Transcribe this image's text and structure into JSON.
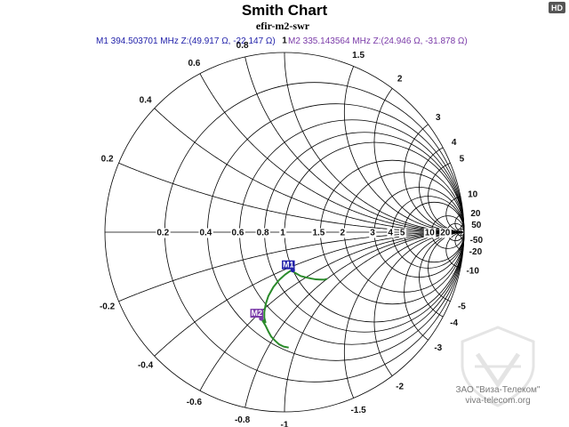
{
  "hd_badge": "HD",
  "watermark": {
    "company": "ЗАО \"Виза-Телеком\"",
    "url": "viva-telecom.org"
  },
  "colors": {
    "m1": "#2222aa",
    "m2": "#7a3aa8",
    "trace": "#2a8a2a",
    "grid": "#000000"
  },
  "chart_data": {
    "type": "smith",
    "title": "Smith Chart",
    "subtitle": "efir-m2-swr",
    "reference_impedance_ohm": 50,
    "markers": [
      {
        "name": "M1",
        "freq": "394.503701 MHz",
        "z": "Z:(49.917 Ω, -22.147 Ω)",
        "r": 49.917,
        "x": -22.147,
        "color_key": "m1",
        "label": "M1  394.503701 MHz  Z:(49.917 Ω, -22.147 Ω)"
      },
      {
        "name": "M2",
        "freq": "335.143564 MHz",
        "z": "Z:(24.946 Ω, -31.878 Ω)",
        "r": 24.946,
        "x": -31.878,
        "color_key": "m2",
        "label": "M2  335.143564 MHz  Z:(24.946 Ω, -31.878 Ω)"
      }
    ],
    "resistance_circles": [
      0.2,
      0.4,
      0.6,
      0.8,
      1,
      1.5,
      2,
      3,
      4,
      5,
      10,
      20,
      50
    ],
    "reactance_arcs": [
      0.2,
      0.4,
      0.6,
      0.8,
      1,
      1.5,
      2,
      3,
      4,
      5,
      10,
      20,
      50
    ],
    "real_axis_labels": [
      "0.2",
      "0.4",
      "0.6",
      "0.8",
      "1",
      "1.5",
      "2",
      "3",
      "4",
      "5",
      "10",
      "20"
    ],
    "positive_reactance_labels": [
      "0.2",
      "0.4",
      "0.6",
      "0.8",
      "1",
      "1.5",
      "2",
      "3",
      "4",
      "5",
      "10",
      "20",
      "50"
    ],
    "negative_reactance_labels": [
      "-0.2",
      "-0.4",
      "-0.6",
      "-0.8",
      "-1",
      "-1.5",
      "-2",
      "-3",
      "-4",
      "-5",
      "-10",
      "-20",
      "-50"
    ],
    "trace_normalized_impedance": [
      [
        1.35,
        -0.8
      ],
      [
        1.3,
        -0.78
      ],
      [
        1.25,
        -0.74
      ],
      [
        1.2,
        -0.7
      ],
      [
        1.15,
        -0.65
      ],
      [
        1.1,
        -0.6
      ],
      [
        1.05,
        -0.55
      ],
      [
        1.02,
        -0.5
      ],
      [
        1.0,
        -0.47
      ],
      [
        0.998,
        -0.443
      ],
      [
        0.96,
        -0.44
      ],
      [
        0.9,
        -0.45
      ],
      [
        0.82,
        -0.47
      ],
      [
        0.74,
        -0.5
      ],
      [
        0.66,
        -0.54
      ],
      [
        0.6,
        -0.58
      ],
      [
        0.55,
        -0.62
      ],
      [
        0.52,
        -0.65
      ],
      [
        0.5,
        -0.68
      ],
      [
        0.499,
        -0.638
      ],
      [
        0.48,
        -0.7
      ],
      [
        0.46,
        -0.74
      ],
      [
        0.44,
        -0.78
      ],
      [
        0.43,
        -0.82
      ],
      [
        0.42,
        -0.86
      ],
      [
        0.42,
        -0.9
      ],
      [
        0.43,
        -0.94
      ]
    ]
  }
}
